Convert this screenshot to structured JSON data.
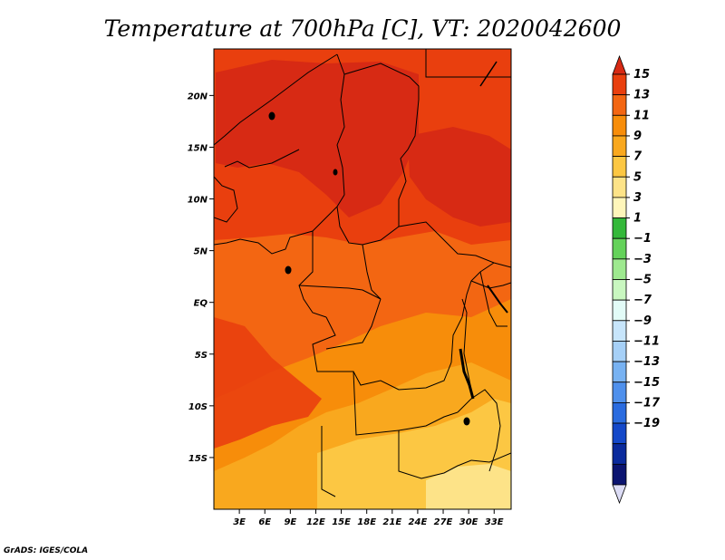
{
  "chart_data": {
    "type": "heatmap",
    "title": "Temperature at 700hPa [C], VT: 2020042600",
    "variable": "Temperature",
    "level": "700hPa",
    "units": "C",
    "valid_time": "2020042600",
    "x_axis": {
      "range_deg": [
        0,
        35
      ],
      "ticks": [
        {
          "value": 3,
          "label": "3E"
        },
        {
          "value": 6,
          "label": "6E"
        },
        {
          "value": 9,
          "label": "9E"
        },
        {
          "value": 12,
          "label": "12E"
        },
        {
          "value": 15,
          "label": "15E"
        },
        {
          "value": 18,
          "label": "18E"
        },
        {
          "value": 21,
          "label": "21E"
        },
        {
          "value": 24,
          "label": "24E"
        },
        {
          "value": 27,
          "label": "27E"
        },
        {
          "value": 30,
          "label": "30E"
        },
        {
          "value": 33,
          "label": "33E"
        }
      ]
    },
    "y_axis": {
      "range_deg": [
        -20,
        24.5
      ],
      "ticks": [
        {
          "value": 20,
          "label": "20N"
        },
        {
          "value": 15,
          "label": "15N"
        },
        {
          "value": 10,
          "label": "10N"
        },
        {
          "value": 5,
          "label": "5N"
        },
        {
          "value": 0,
          "label": "EQ"
        },
        {
          "value": -5,
          "label": "5S"
        },
        {
          "value": -10,
          "label": "10S"
        },
        {
          "value": -15,
          "label": "15S"
        }
      ]
    },
    "colorbar": {
      "labels": [
        "15",
        "13",
        "11",
        "9",
        "7",
        "5",
        "3",
        "1",
        "−1",
        "−3",
        "−5",
        "−7",
        "−9",
        "−11",
        "−13",
        "−15",
        "−17",
        "−19"
      ],
      "colors": [
        "#d72a14",
        "#e93f0e",
        "#f36612",
        "#f78d0a",
        "#f9a81e",
        "#fcc743",
        "#fde388",
        "#fff6ba",
        "#34b83a",
        "#64d25a",
        "#9ee98f",
        "#c9f7c0",
        "#e2fbf7",
        "#c7e5fb",
        "#a6d0f7",
        "#78b2f2",
        "#4f90ec",
        "#2a6bdf",
        "#1448c9",
        "#0a2a9c",
        "#0b1470",
        "#dcdcf5"
      ]
    },
    "field_regions": [
      {
        "id": "north-band",
        "value": 13
      },
      {
        "id": "sahel-hot-core",
        "value": 14
      },
      {
        "id": "east-sudan-core",
        "value": 14
      },
      {
        "id": "west-coast-band",
        "value": 12
      },
      {
        "id": "congo-basin",
        "value": 11
      },
      {
        "id": "central-south",
        "value": 10
      },
      {
        "id": "angola-plateau",
        "value": 8
      },
      {
        "id": "south-east-cool",
        "value": 6
      }
    ]
  },
  "footer": {
    "credit": "GrADS: IGES/COLA"
  }
}
